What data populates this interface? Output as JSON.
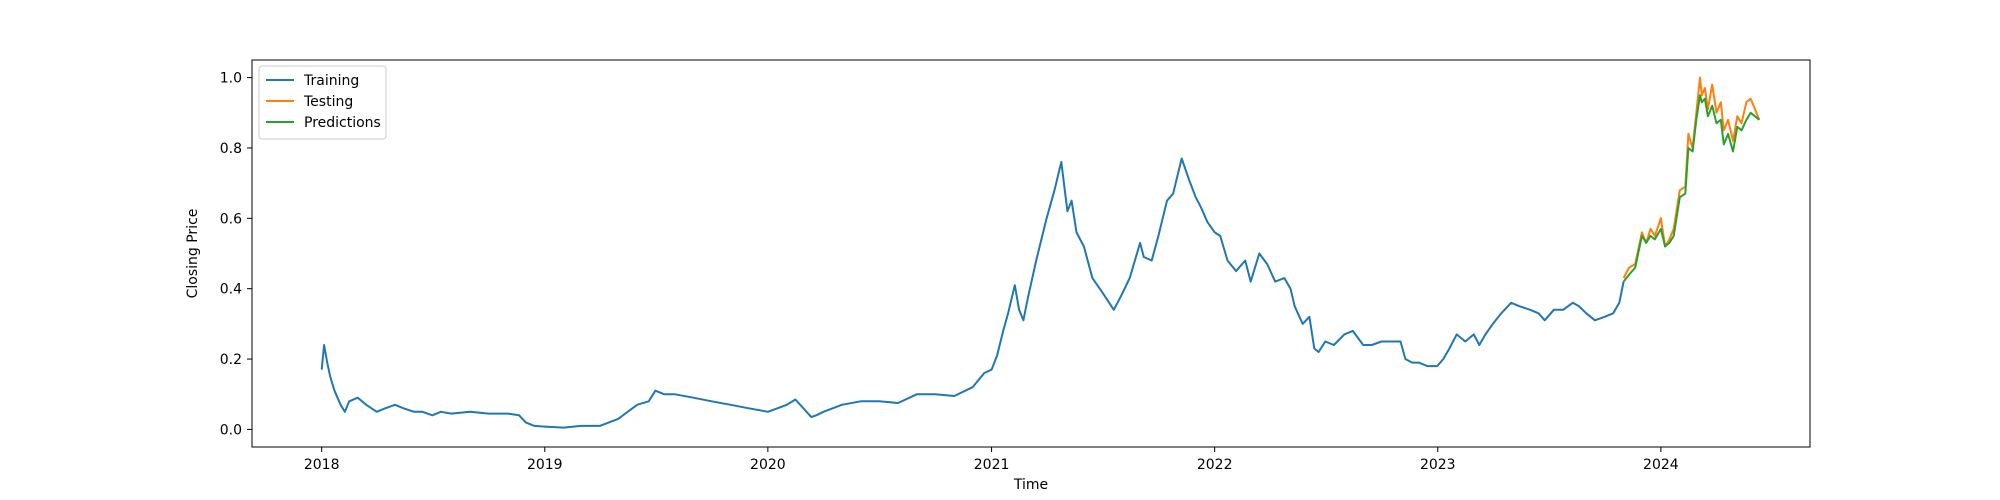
{
  "chart_data": {
    "type": "line",
    "title": "",
    "xlabel": "Time",
    "ylabel": "Closing Price",
    "xlim": [
      "2017-09-09",
      "2024-09-01"
    ],
    "ylim": [
      -0.05,
      1.05
    ],
    "x_ticks": [
      "2018-01-01",
      "2019-01-01",
      "2020-01-01",
      "2021-01-01",
      "2022-01-01",
      "2023-01-01",
      "2024-01-01"
    ],
    "x_tick_labels": [
      "2018",
      "2019",
      "2020",
      "2021",
      "2022",
      "2023",
      "2024"
    ],
    "y_ticks": [
      0.0,
      0.2,
      0.4,
      0.6,
      0.8,
      1.0
    ],
    "y_tick_labels": [
      "0.0",
      "0.2",
      "0.4",
      "0.6",
      "0.8",
      "1.0"
    ],
    "grid": false,
    "legend_position": "top-left",
    "series": [
      {
        "name": "Training",
        "color": "#1f77b4",
        "x": [
          "2018-01-01",
          "2018-01-05",
          "2018-01-10",
          "2018-01-15",
          "2018-01-22",
          "2018-02-01",
          "2018-02-08",
          "2018-02-15",
          "2018-03-01",
          "2018-03-15",
          "2018-04-01",
          "2018-04-15",
          "2018-05-01",
          "2018-05-15",
          "2018-06-01",
          "2018-06-15",
          "2018-07-01",
          "2018-07-15",
          "2018-08-01",
          "2018-09-01",
          "2018-10-01",
          "2018-11-01",
          "2018-11-20",
          "2018-12-01",
          "2018-12-15",
          "2019-01-01",
          "2019-02-01",
          "2019-03-01",
          "2019-04-01",
          "2019-05-01",
          "2019-06-01",
          "2019-06-20",
          "2019-07-01",
          "2019-07-15",
          "2019-08-01",
          "2019-09-01",
          "2019-10-01",
          "2019-11-01",
          "2019-12-01",
          "2020-01-01",
          "2020-02-01",
          "2020-02-15",
          "2020-03-12",
          "2020-03-20",
          "2020-04-01",
          "2020-05-01",
          "2020-06-01",
          "2020-07-01",
          "2020-08-01",
          "2020-09-01",
          "2020-10-01",
          "2020-11-01",
          "2020-12-01",
          "2020-12-20",
          "2021-01-01",
          "2021-01-10",
          "2021-01-20",
          "2021-01-28",
          "2021-02-08",
          "2021-02-15",
          "2021-02-22",
          "2021-03-01",
          "2021-03-15",
          "2021-04-01",
          "2021-04-14",
          "2021-04-25",
          "2021-05-05",
          "2021-05-12",
          "2021-05-20",
          "2021-06-01",
          "2021-06-15",
          "2021-07-01",
          "2021-07-20",
          "2021-08-01",
          "2021-08-15",
          "2021-09-01",
          "2021-09-07",
          "2021-09-20",
          "2021-10-01",
          "2021-10-15",
          "2021-10-25",
          "2021-11-08",
          "2021-11-20",
          "2021-12-01",
          "2021-12-10",
          "2021-12-20",
          "2022-01-01",
          "2022-01-10",
          "2022-01-22",
          "2022-02-05",
          "2022-02-20",
          "2022-03-01",
          "2022-03-15",
          "2022-03-28",
          "2022-04-10",
          "2022-04-25",
          "2022-05-05",
          "2022-05-12",
          "2022-05-25",
          "2022-06-05",
          "2022-06-13",
          "2022-06-20",
          "2022-07-01",
          "2022-07-15",
          "2022-08-01",
          "2022-08-15",
          "2022-09-01",
          "2022-09-15",
          "2022-10-01",
          "2022-10-15",
          "2022-11-01",
          "2022-11-09",
          "2022-11-20",
          "2022-12-01",
          "2022-12-15",
          "2022-12-31",
          "2023-01-10",
          "2023-01-20",
          "2023-02-01",
          "2023-02-15",
          "2023-03-01",
          "2023-03-10",
          "2023-03-20",
          "2023-04-01",
          "2023-04-15",
          "2023-05-01",
          "2023-05-15",
          "2023-06-01",
          "2023-06-15",
          "2023-06-25",
          "2023-07-10",
          "2023-07-25",
          "2023-08-10",
          "2023-08-20",
          "2023-09-01",
          "2023-09-15",
          "2023-10-01",
          "2023-10-15",
          "2023-10-25",
          "2023-11-01"
        ],
        "values": [
          0.17,
          0.24,
          0.19,
          0.15,
          0.11,
          0.07,
          0.05,
          0.08,
          0.09,
          0.07,
          0.05,
          0.06,
          0.07,
          0.06,
          0.05,
          0.05,
          0.04,
          0.05,
          0.045,
          0.05,
          0.045,
          0.045,
          0.04,
          0.02,
          0.01,
          0.008,
          0.005,
          0.01,
          0.01,
          0.03,
          0.07,
          0.08,
          0.11,
          0.1,
          0.1,
          0.09,
          0.08,
          0.07,
          0.06,
          0.05,
          0.07,
          0.085,
          0.035,
          0.04,
          0.05,
          0.07,
          0.08,
          0.08,
          0.075,
          0.1,
          0.1,
          0.095,
          0.12,
          0.16,
          0.17,
          0.21,
          0.28,
          0.33,
          0.41,
          0.34,
          0.31,
          0.37,
          0.48,
          0.6,
          0.68,
          0.76,
          0.62,
          0.65,
          0.56,
          0.52,
          0.43,
          0.39,
          0.34,
          0.38,
          0.43,
          0.53,
          0.49,
          0.48,
          0.55,
          0.65,
          0.67,
          0.77,
          0.71,
          0.66,
          0.63,
          0.59,
          0.56,
          0.55,
          0.48,
          0.45,
          0.48,
          0.42,
          0.5,
          0.47,
          0.42,
          0.43,
          0.4,
          0.35,
          0.3,
          0.32,
          0.23,
          0.22,
          0.25,
          0.24,
          0.27,
          0.28,
          0.24,
          0.24,
          0.25,
          0.25,
          0.25,
          0.2,
          0.19,
          0.19,
          0.18,
          0.18,
          0.2,
          0.23,
          0.27,
          0.25,
          0.27,
          0.24,
          0.27,
          0.3,
          0.33,
          0.36,
          0.35,
          0.34,
          0.33,
          0.31,
          0.34,
          0.34,
          0.36,
          0.35,
          0.33,
          0.31,
          0.32,
          0.33,
          0.36,
          0.42
        ]
      },
      {
        "name": "Testing",
        "color": "#ff7f0e",
        "x": [
          "2023-11-01",
          "2023-11-10",
          "2023-11-20",
          "2023-12-01",
          "2023-12-08",
          "2023-12-15",
          "2023-12-22",
          "2024-01-01",
          "2024-01-08",
          "2024-01-15",
          "2024-01-22",
          "2024-02-01",
          "2024-02-10",
          "2024-02-15",
          "2024-02-22",
          "2024-02-28",
          "2024-03-05",
          "2024-03-08",
          "2024-03-13",
          "2024-03-18",
          "2024-03-25",
          "2024-04-01",
          "2024-04-08",
          "2024-04-13",
          "2024-04-20",
          "2024-04-28",
          "2024-05-05",
          "2024-05-12",
          "2024-05-20",
          "2024-05-27",
          "2024-06-03",
          "2024-06-10"
        ],
        "values": [
          0.43,
          0.46,
          0.47,
          0.56,
          0.53,
          0.57,
          0.55,
          0.6,
          0.52,
          0.54,
          0.57,
          0.68,
          0.69,
          0.84,
          0.8,
          0.9,
          1.0,
          0.95,
          0.97,
          0.91,
          0.98,
          0.9,
          0.93,
          0.85,
          0.88,
          0.82,
          0.89,
          0.87,
          0.93,
          0.94,
          0.91,
          0.88
        ]
      },
      {
        "name": "Predictions",
        "color": "#2ca02c",
        "x": [
          "2023-11-01",
          "2023-11-10",
          "2023-11-20",
          "2023-12-01",
          "2023-12-08",
          "2023-12-15",
          "2023-12-22",
          "2024-01-01",
          "2024-01-08",
          "2024-01-15",
          "2024-01-22",
          "2024-02-01",
          "2024-02-10",
          "2024-02-15",
          "2024-02-22",
          "2024-02-28",
          "2024-03-05",
          "2024-03-08",
          "2024-03-13",
          "2024-03-18",
          "2024-03-25",
          "2024-04-01",
          "2024-04-08",
          "2024-04-13",
          "2024-04-20",
          "2024-04-28",
          "2024-05-05",
          "2024-05-12",
          "2024-05-20",
          "2024-05-27",
          "2024-06-03",
          "2024-06-10"
        ],
        "values": [
          0.42,
          0.44,
          0.46,
          0.55,
          0.53,
          0.55,
          0.54,
          0.57,
          0.52,
          0.53,
          0.55,
          0.66,
          0.67,
          0.8,
          0.79,
          0.88,
          0.95,
          0.93,
          0.94,
          0.89,
          0.92,
          0.87,
          0.88,
          0.81,
          0.84,
          0.79,
          0.86,
          0.85,
          0.88,
          0.9,
          0.89,
          0.88
        ]
      }
    ]
  }
}
